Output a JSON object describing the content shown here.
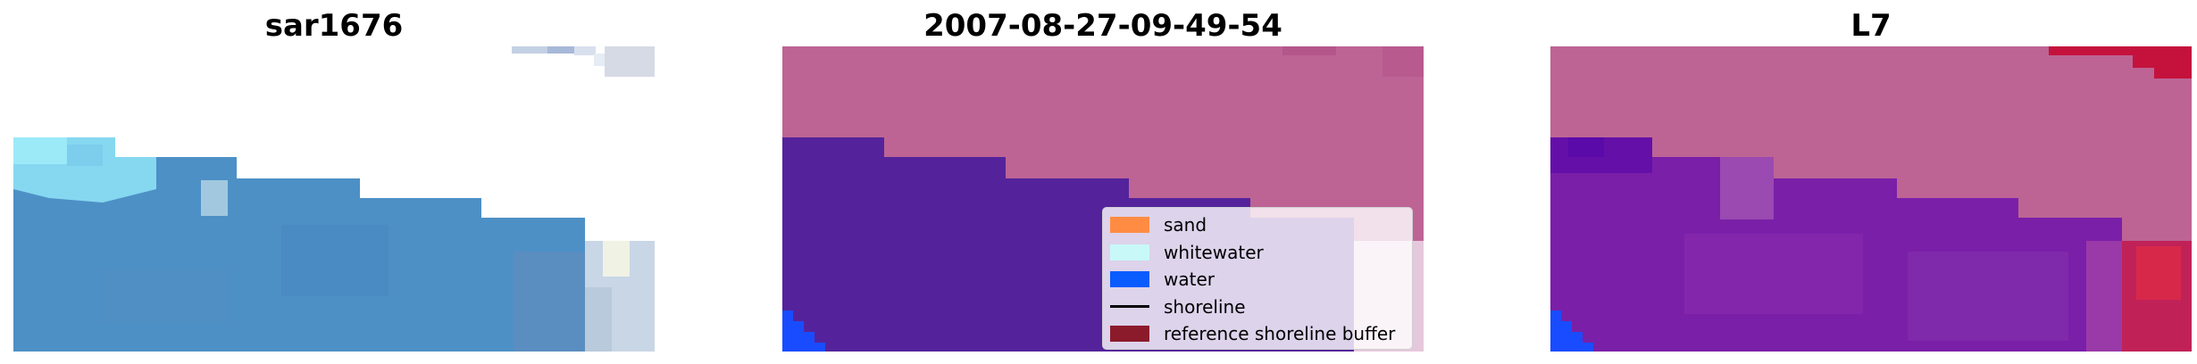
{
  "panels": [
    {
      "id": "rgb",
      "title": "sar1676"
    },
    {
      "id": "classified",
      "title": "2007-08-27-09-49-54"
    },
    {
      "id": "index",
      "title": "L7"
    }
  ],
  "legend": {
    "items": [
      {
        "label": "sand",
        "kind": "patch",
        "color": "#ff8c42"
      },
      {
        "label": "whitewater",
        "kind": "patch",
        "color": "#c8f8f8"
      },
      {
        "label": "water",
        "kind": "patch",
        "color": "#0a5cff"
      },
      {
        "label": "shoreline",
        "kind": "line",
        "color": "#000000"
      },
      {
        "label": "reference shoreline buffer",
        "kind": "patch",
        "color": "#8b1a2b"
      }
    ]
  },
  "colors": {
    "sea_rgb": "#4a8ec4",
    "whitewater_rgb": "#8ee6f8",
    "nodata_pink": "#bd6495",
    "water_class_purple": "#54239b",
    "water_blue": "#1a4cff",
    "index_purple": "#7a1fa8",
    "index_red": "#c4123c"
  }
}
